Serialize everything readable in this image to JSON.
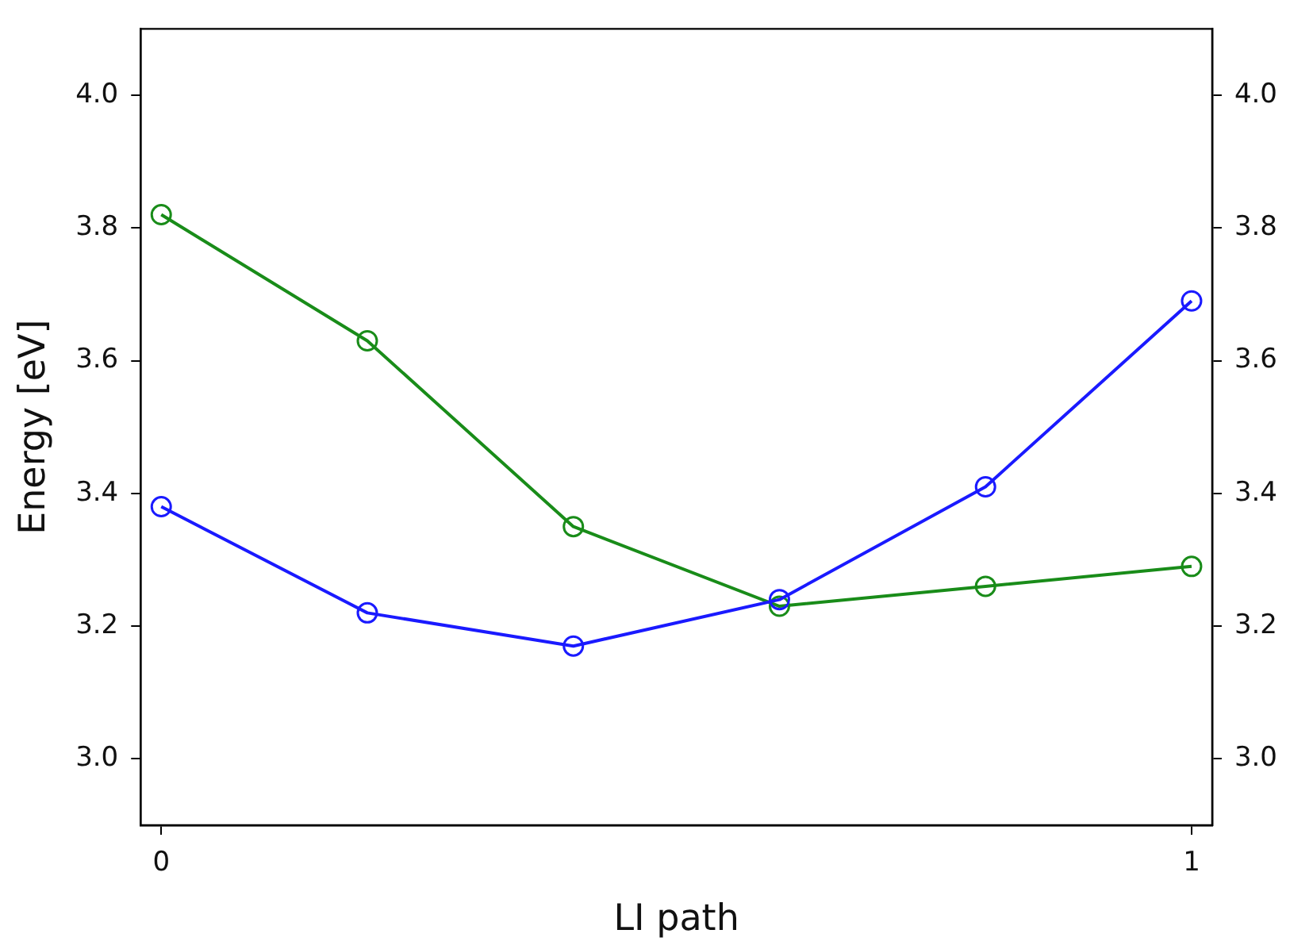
{
  "chart_data": {
    "type": "line",
    "xlabel": "LI path",
    "ylabel": "Energy [eV]",
    "x": [
      0,
      0.2,
      0.4,
      0.6,
      0.8,
      1
    ],
    "series": [
      {
        "color": "#1a1aff",
        "values": [
          3.38,
          3.22,
          3.17,
          3.24,
          3.41,
          3.69
        ]
      },
      {
        "color": "#198c19",
        "values": [
          3.82,
          3.63,
          3.35,
          3.23,
          3.26,
          3.29
        ]
      }
    ],
    "xlim": [
      -0.02,
      1.02
    ],
    "xticks": [
      0,
      1
    ],
    "ylim": [
      2.9,
      4.1
    ],
    "yticks": [
      {
        "value": 3,
        "label": "3.0"
      },
      {
        "value": 3.2,
        "label": "3.2"
      },
      {
        "value": 3.4,
        "label": "3.4"
      },
      {
        "value": 3.6,
        "label": "3.6"
      },
      {
        "value": 3.8,
        "label": "3.8"
      },
      {
        "value": 4,
        "label": "4.0"
      }
    ],
    "y2lim": [
      2.9,
      4.1
    ],
    "y2ticks": [
      {
        "value": 3,
        "label": "3.0"
      },
      {
        "value": 3.2,
        "label": "3.2"
      },
      {
        "value": 3.4,
        "label": "3.4"
      },
      {
        "value": 3.6,
        "label": "3.6"
      },
      {
        "value": 3.8,
        "label": "3.8"
      },
      {
        "value": 4,
        "label": "4.0"
      }
    ],
    "grid": false,
    "legend": false,
    "marker": "circle",
    "line_style": "solid"
  }
}
